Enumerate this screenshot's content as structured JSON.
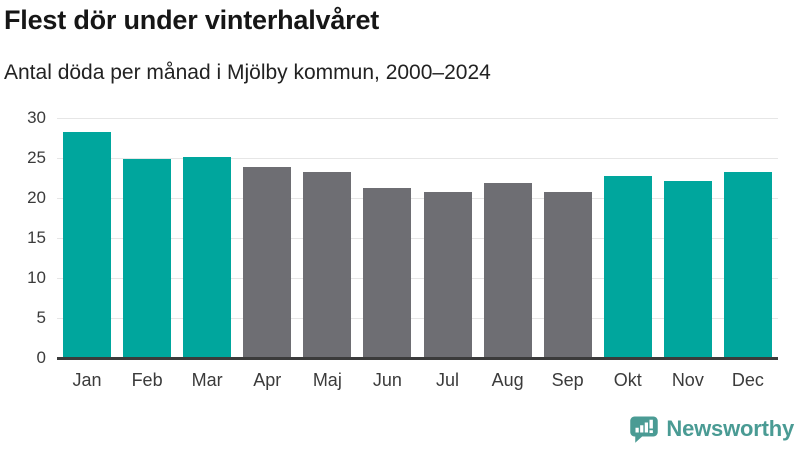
{
  "header": {
    "title": "Flest dör under vinterhalvåret",
    "subtitle": "Antal döda per månad i Mjölby kommun, 2000–2024"
  },
  "chart_data": {
    "type": "bar",
    "title": "Flest dör under vinterhalvåret",
    "subtitle": "Antal döda per månad i Mjölby kommun, 2000–2024",
    "categories": [
      "Jan",
      "Feb",
      "Mar",
      "Apr",
      "Maj",
      "Jun",
      "Jul",
      "Aug",
      "Sep",
      "Okt",
      "Nov",
      "Dec"
    ],
    "values": [
      28.2,
      24.9,
      25.1,
      23.9,
      23.3,
      21.3,
      20.7,
      21.9,
      20.8,
      22.7,
      22.1,
      23.2
    ],
    "bar_color_keys": [
      "highlight",
      "highlight",
      "highlight",
      "base",
      "base",
      "base",
      "base",
      "base",
      "base",
      "highlight",
      "highlight",
      "highlight"
    ],
    "colors": {
      "highlight": "#00a69d",
      "base": "#6e6e73"
    },
    "xlabel": "",
    "ylabel": "",
    "ylim": [
      0,
      30
    ],
    "yticks": [
      0,
      5,
      10,
      15,
      20,
      25,
      30
    ],
    "grid": true,
    "legend": "none",
    "gridline_color": "#e6e6e6",
    "axis_line_color": "#3b3b3b",
    "tick_label_color": "#3b3b3b"
  },
  "branding": {
    "logo_text": "Newsworthy",
    "logo_color": "#4a9b94",
    "logo_icon": "newsworthy-speech-bubble-chart-icon"
  }
}
